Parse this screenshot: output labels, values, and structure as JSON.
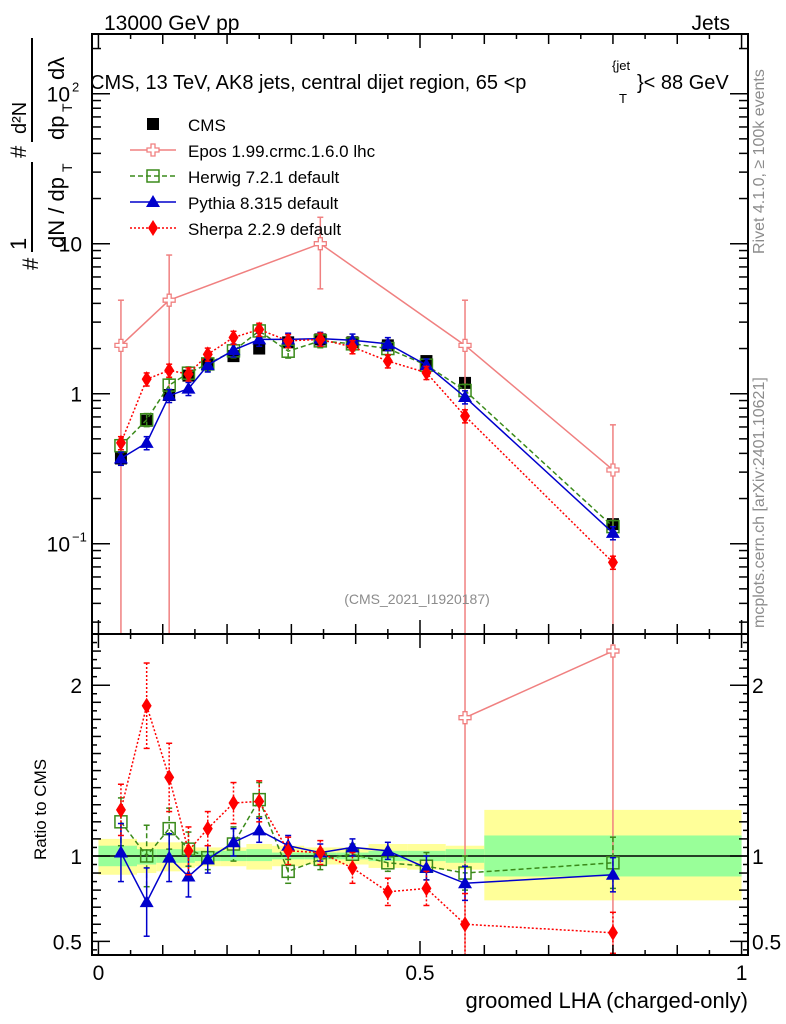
{
  "header": {
    "left": "13000 GeV pp",
    "right": "Jets"
  },
  "side_labels": {
    "top": "Rivet 4.1.0, ≥ 100k events",
    "bottom": "mcplots.cern.ch [arXiv:2401.10621]"
  },
  "chart_data": [
    {
      "type": "line",
      "panel": "main",
      "title": "CMS, 13 TeV, AK8 jets, central dijet region, 65 <p_T^{jet}< 88 GeV",
      "title_parts": {
        "main": "CMS, 13 TeV, AK8 jets, central dijet region, 65 <p",
        "sup": "{jet",
        "sub": "T",
        "tail": "}< 88 GeV"
      },
      "ylabel": "1/dN/dp_T # d^2N/dp_T # dλ",
      "ylabel_parts": {
        "frac1_num": "1",
        "frac1_den": "dN / dp",
        "frac1_den_sub": "T",
        "frac2_num": "d²N",
        "frac2_den": "dp",
        "frac2_den_sub": "T",
        "frac2_den_tail": "dλ",
        "hash": "#"
      },
      "xlabel": "",
      "yscale": "log",
      "ylim": [
        0.025,
        250
      ],
      "xlim": [
        -0.01,
        1.01
      ],
      "ytick_labels": [
        {
          "v": 0.1,
          "label": "10",
          "sup": "−1"
        },
        {
          "v": 1,
          "label": "1"
        },
        {
          "v": 10,
          "label": "10"
        },
        {
          "v": 100,
          "label": "10",
          "sup": "2"
        }
      ],
      "watermark": "(CMS_2021_I1920187)",
      "legend_position": "top-left",
      "x": [
        0.035,
        0.075,
        0.11,
        0.14,
        0.17,
        0.21,
        0.25,
        0.295,
        0.345,
        0.395,
        0.45,
        0.51,
        0.57,
        0.8
      ],
      "series": [
        {
          "name": "CMS",
          "color": "#000000",
          "marker": "square-filled",
          "line": "none",
          "values": [
            0.37,
            0.66,
            0.98,
            1.32,
            1.58,
            1.78,
            2.0,
            2.2,
            2.3,
            2.2,
            2.1,
            1.65,
            1.18,
            0.135
          ]
        },
        {
          "name": "Epos 1.99.crmc.1.6.0 lhc",
          "color": "#f08080",
          "marker": "cross-open",
          "line": "solid",
          "x": [
            0.035,
            0.11,
            0.345,
            0.57,
            0.8
          ],
          "values": [
            2.1,
            4.2,
            10.0,
            2.1,
            0.31
          ],
          "err": [
            2.1,
            4.2,
            5.0,
            2.1,
            0.31
          ]
        },
        {
          "name": "Herwig 7.2.1 default",
          "color": "#3a8a1a",
          "marker": "square-open",
          "line": "dashed",
          "values": [
            0.45,
            0.67,
            1.14,
            1.37,
            1.58,
            1.93,
            2.62,
            1.92,
            2.25,
            2.15,
            2.0,
            1.55,
            1.05,
            0.13
          ]
        },
        {
          "name": "Pythia 8.315 default",
          "color": "#0000cc",
          "marker": "triangle-filled",
          "line": "solid",
          "values": [
            0.37,
            0.47,
            0.97,
            1.08,
            1.55,
            1.95,
            2.3,
            2.3,
            2.33,
            2.27,
            2.15,
            1.55,
            0.95,
            0.118
          ]
        },
        {
          "name": "Sherpa 2.2.9 default",
          "color": "#ff0000",
          "marker": "diamond-filled",
          "line": "dotted",
          "values": [
            0.47,
            1.25,
            1.43,
            1.35,
            1.83,
            2.37,
            2.68,
            2.25,
            2.3,
            2.05,
            1.65,
            1.38,
            0.71,
            0.075
          ]
        }
      ]
    },
    {
      "type": "line",
      "panel": "ratio",
      "ylabel": "Ratio to CMS",
      "xlabel": "groomed LHA (charged-only)",
      "ylim": [
        0.42,
        2.3
      ],
      "xlim": [
        -0.01,
        1.01
      ],
      "ytick_labels": [
        "0.5",
        "1",
        "2"
      ],
      "xtick_labels": [
        "0",
        "0.5",
        "1"
      ],
      "ytick_values": [
        0.5,
        1,
        2
      ],
      "xtick_values": [
        0,
        0.5,
        1
      ],
      "band_edges": [
        0.0,
        0.06,
        0.09,
        0.13,
        0.15,
        0.19,
        0.23,
        0.27,
        0.32,
        0.37,
        0.42,
        0.48,
        0.54,
        0.6,
        1.0
      ],
      "band_inner": [
        [
          0.94,
          1.06
        ],
        [
          0.95,
          1.04
        ],
        [
          0.96,
          1.04
        ],
        [
          0.96,
          1.03
        ],
        [
          0.97,
          1.03
        ],
        [
          0.97,
          1.03
        ],
        [
          0.97,
          1.04
        ],
        [
          0.98,
          1.02
        ],
        [
          0.98,
          1.02
        ],
        [
          0.98,
          1.02
        ],
        [
          0.97,
          1.03
        ],
        [
          0.97,
          1.03
        ],
        [
          0.96,
          1.04
        ],
        [
          0.88,
          1.12
        ]
      ],
      "band_outer": [
        [
          0.89,
          1.1
        ],
        [
          0.9,
          1.08
        ],
        [
          0.91,
          1.08
        ],
        [
          0.93,
          1.06
        ],
        [
          0.94,
          1.05
        ],
        [
          0.94,
          1.05
        ],
        [
          0.92,
          1.07
        ],
        [
          0.94,
          1.06
        ],
        [
          0.95,
          1.05
        ],
        [
          0.95,
          1.05
        ],
        [
          0.93,
          1.07
        ],
        [
          0.92,
          1.07
        ],
        [
          0.92,
          1.06
        ],
        [
          0.74,
          1.27
        ]
      ],
      "reference_line": 1,
      "series": [
        {
          "name": "Epos 1.99.crmc.1.6.0 lhc",
          "x": [
            0.57,
            0.8
          ],
          "values": [
            1.81,
            2.2
          ]
        },
        {
          "name": "Herwig 7.2.1 default",
          "values": [
            1.2,
            1.0,
            1.16,
            1.04,
            0.99,
            1.07,
            1.33,
            0.91,
            0.98,
            1.01,
            0.96,
            0.94,
            0.9,
            0.96
          ],
          "err": [
            0.14,
            0.18,
            0.12,
            0.1,
            0.07,
            0.1,
            0.1,
            0.07,
            0.06,
            0.06,
            0.05,
            0.08,
            0.1,
            0.15
          ]
        },
        {
          "name": "Pythia 8.315 default",
          "values": [
            1.02,
            0.73,
            0.99,
            0.88,
            0.98,
            1.08,
            1.15,
            1.06,
            1.02,
            1.05,
            1.03,
            0.93,
            0.84,
            0.89
          ],
          "err": [
            0.17,
            0.2,
            0.14,
            0.12,
            0.08,
            0.08,
            0.07,
            0.06,
            0.05,
            0.05,
            0.05,
            0.07,
            0.1,
            0.1
          ]
        },
        {
          "name": "Sherpa 2.2.9 default",
          "values": [
            1.27,
            1.88,
            1.46,
            1.03,
            1.16,
            1.31,
            1.32,
            1.03,
            1.02,
            0.93,
            0.79,
            0.81,
            0.6,
            0.55
          ],
          "err": [
            0.15,
            0.25,
            0.2,
            0.14,
            0.1,
            0.12,
            0.12,
            0.08,
            0.07,
            0.09,
            0.08,
            0.1,
            0.18,
            0.12
          ]
        }
      ]
    }
  ]
}
